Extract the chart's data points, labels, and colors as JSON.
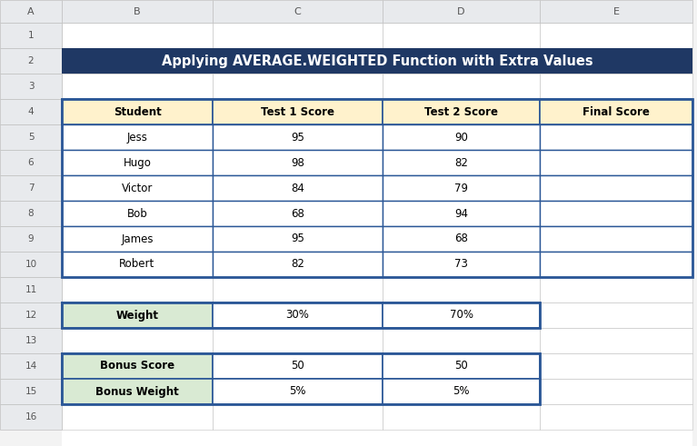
{
  "title": "Applying AVERAGE.WEIGHTED Function with Extra Values",
  "title_bg": "#1F3864",
  "title_fg": "#FFFFFF",
  "col_headers": [
    "Student",
    "Test 1 Score",
    "Test 2 Score",
    "Final Score"
  ],
  "col_header_bg": "#FFF2CC",
  "students": [
    "Jess",
    "Hugo",
    "Victor",
    "Bob",
    "James",
    "Robert"
  ],
  "test1": [
    95,
    98,
    84,
    68,
    95,
    82
  ],
  "test2": [
    90,
    82,
    79,
    94,
    68,
    73
  ],
  "weight_label": "Weight",
  "weight_bg": "#D9EAD3",
  "weight1": "30%",
  "weight2": "70%",
  "bonus_score_label": "Bonus Score",
  "bonus_score1": "50",
  "bonus_score2": "50",
  "bonus_weight_label": "Bonus Weight",
  "bonus_weight1": "5%",
  "bonus_weight2": "5%",
  "bonus_bg": "#D9EAD3",
  "spreadsheet_bg": "#F3F3F3",
  "col_header_labels": [
    "A",
    "B",
    "C",
    "D",
    "E"
  ],
  "table_border_color": "#2B5797",
  "fig_bg": "#FFFFFF",
  "grid_color": "#C0C0C0",
  "header_strip_bg": "#E8EAED",
  "header_strip_text": "#555555"
}
